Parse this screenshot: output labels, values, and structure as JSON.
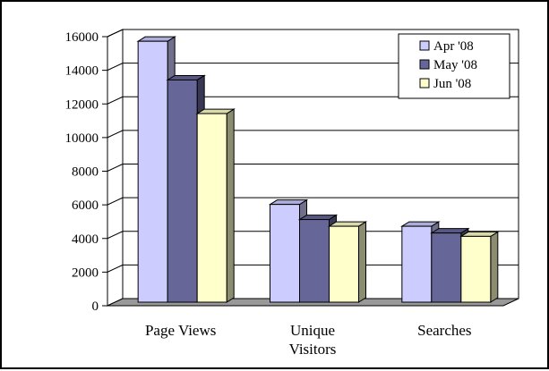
{
  "chart_data": {
    "type": "bar",
    "title": "",
    "xlabel": "",
    "ylabel": "",
    "categories": [
      [
        "Page Views"
      ],
      [
        "Unique",
        "Visitors"
      ],
      [
        "Searches"
      ]
    ],
    "series": [
      {
        "name": "Apr '08",
        "values": [
          15300,
          5600,
          4300
        ],
        "color": "#ccccff"
      },
      {
        "name": "May '08",
        "values": [
          13000,
          4700,
          3900
        ],
        "color": "#666699"
      },
      {
        "name": "Jun '08",
        "values": [
          11000,
          4300,
          3700
        ],
        "color": "#ffffcc"
      }
    ],
    "ylim": [
      0,
      16000
    ],
    "yticks": [
      0,
      2000,
      4000,
      6000,
      8000,
      10000,
      12000,
      14000,
      16000
    ],
    "grid": true,
    "legend_position": "top-right",
    "style": "3d-clustered-column"
  }
}
